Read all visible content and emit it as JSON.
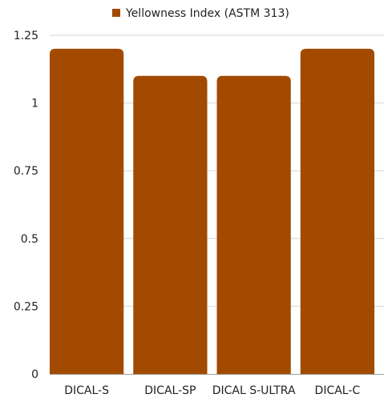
{
  "chart_data": {
    "type": "bar",
    "categories": [
      "DICAL-S",
      "DICAL-SP",
      "DICAL S-ULTRA",
      "DICAL-C"
    ],
    "series": [
      {
        "name": "Yellowness Index (ASTM 313)",
        "values": [
          1.2,
          1.1,
          1.1,
          1.2
        ],
        "color": "#a14a00"
      }
    ],
    "yticks": [
      "0",
      "0.25",
      "0.5",
      "0.75",
      "1",
      "1.25"
    ],
    "ylim": [
      0,
      1.25
    ],
    "grid": true,
    "legend_position": "top"
  }
}
